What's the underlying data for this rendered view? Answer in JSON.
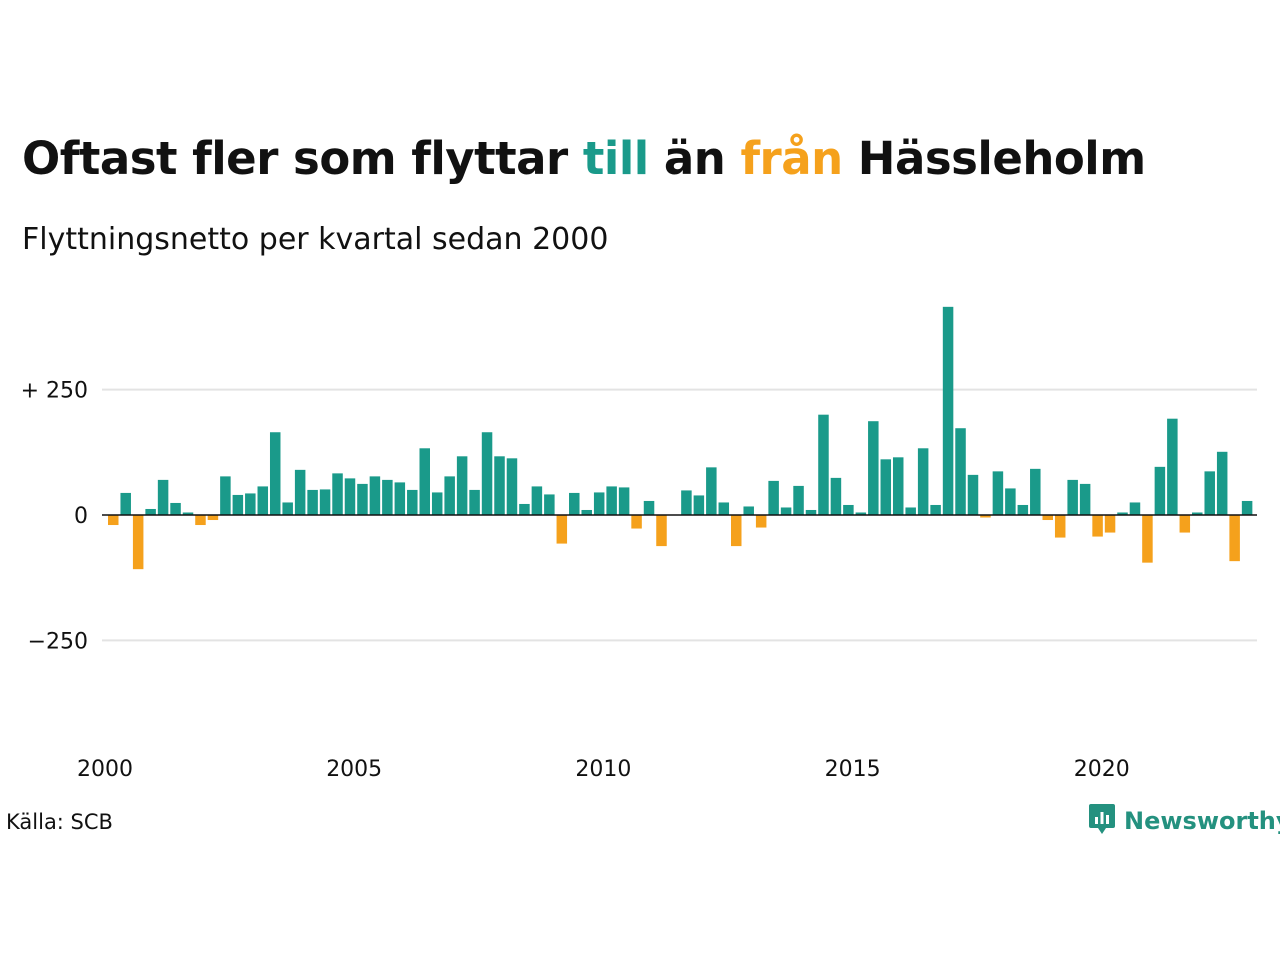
{
  "title": {
    "part1": "Oftast fler som flyttar ",
    "pos_word": "till",
    "part2": " än ",
    "neg_word": "från",
    "part3": " Hässleholm"
  },
  "subtitle": "Flyttningsnetto per kvartal sedan 2000",
  "source": "Källa: SCB",
  "brand": {
    "name": "Newsworthy",
    "icon": "newsworthy-logo-icon"
  },
  "colors": {
    "positive": "#1a9a8a",
    "negative": "#f5a11c",
    "grid": "#e3e3e3",
    "axis": "#111111"
  },
  "chart_data": {
    "type": "bar",
    "title": "Oftast fler som flyttar till än från Hässleholm",
    "subtitle": "Flyttningsnetto per kvartal sedan 2000",
    "x_start": 2000,
    "period": "quarter",
    "xticks": [
      2000,
      2005,
      2010,
      2015,
      2020
    ],
    "yticks": [
      {
        "value": 250,
        "label": "+ 250"
      },
      {
        "value": 0,
        "label": "0"
      },
      {
        "value": -250,
        "label": "−250"
      }
    ],
    "ylim": [
      -250,
      420
    ],
    "grid": true,
    "values": [
      -20,
      44,
      -108,
      12,
      70,
      24,
      5,
      -20,
      -10,
      77,
      40,
      43,
      57,
      165,
      25,
      90,
      50,
      51,
      83,
      73,
      62,
      77,
      70,
      65,
      50,
      133,
      45,
      77,
      117,
      50,
      165,
      117,
      113,
      22,
      57,
      41,
      -57,
      44,
      10,
      45,
      57,
      55,
      -27,
      28,
      -62,
      0,
      49,
      39,
      95,
      25,
      -62,
      17,
      -25,
      68,
      15,
      58,
      10,
      200,
      74,
      20,
      5,
      187,
      111,
      115,
      15,
      133,
      20,
      415,
      173,
      80,
      -5,
      87,
      53,
      20,
      92,
      -10,
      -45,
      70,
      62,
      -43,
      -35,
      5,
      25,
      -95,
      96,
      192,
      -35,
      5,
      87,
      126,
      -92,
      28
    ]
  }
}
